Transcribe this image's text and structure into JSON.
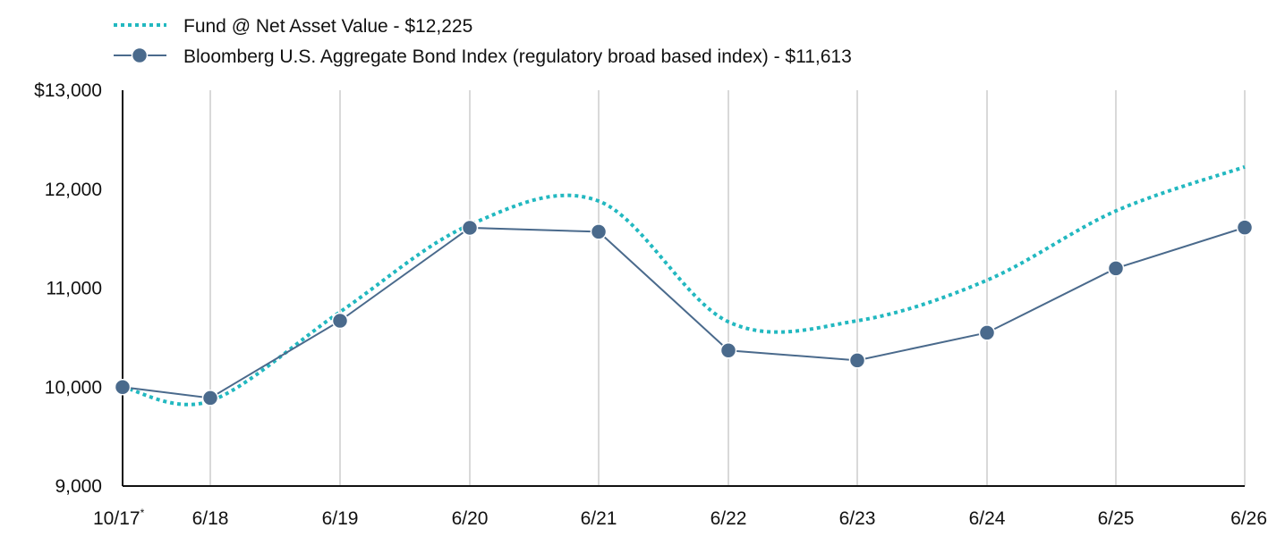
{
  "chart_data": {
    "type": "line",
    "title": "",
    "xlabel": "",
    "ylabel": "",
    "categories": [
      "10/17",
      "6/18",
      "6/19",
      "6/20",
      "6/21",
      "6/22",
      "6/23",
      "6/24",
      "6/25",
      "6/26"
    ],
    "category_note_marker": "*",
    "x": [
      "2017-10",
      "2018-06",
      "2019-06",
      "2020-06",
      "2021-06",
      "2022-06",
      "2023-06",
      "2024-06",
      "2025-06",
      "2026-06"
    ],
    "x_tick_labels": [
      "10/17",
      "6/18",
      "6/19",
      "6/20",
      "6/21",
      "6/22",
      "6/23",
      "6/24",
      "6/25",
      "6/26"
    ],
    "ylim": [
      9000,
      13000
    ],
    "y_ticks": [
      9000,
      10000,
      11000,
      12000,
      13000
    ],
    "y_tick_labels": [
      "9,000",
      "10,000",
      "11,000",
      "12,000",
      "$13,000"
    ],
    "grid": {
      "vertical": true,
      "horizontal": false
    },
    "legend_position": "top-left",
    "series": [
      {
        "name": "Fund @ Net Asset Value - $12,225",
        "color": "#22b8c0",
        "style": "dotted-smooth",
        "values": [
          10000,
          9860,
          10760,
          11640,
          11880,
          10660,
          10670,
          11080,
          11780,
          12225
        ]
      },
      {
        "name": "Bloomberg U.S. Aggregate Bond Index (regulatory broad based index) - $11,613",
        "color": "#4a6a8c",
        "style": "solid-markers",
        "values": [
          10000,
          9890,
          10670,
          11610,
          11570,
          10370,
          10270,
          10550,
          11200,
          11613
        ]
      }
    ]
  }
}
